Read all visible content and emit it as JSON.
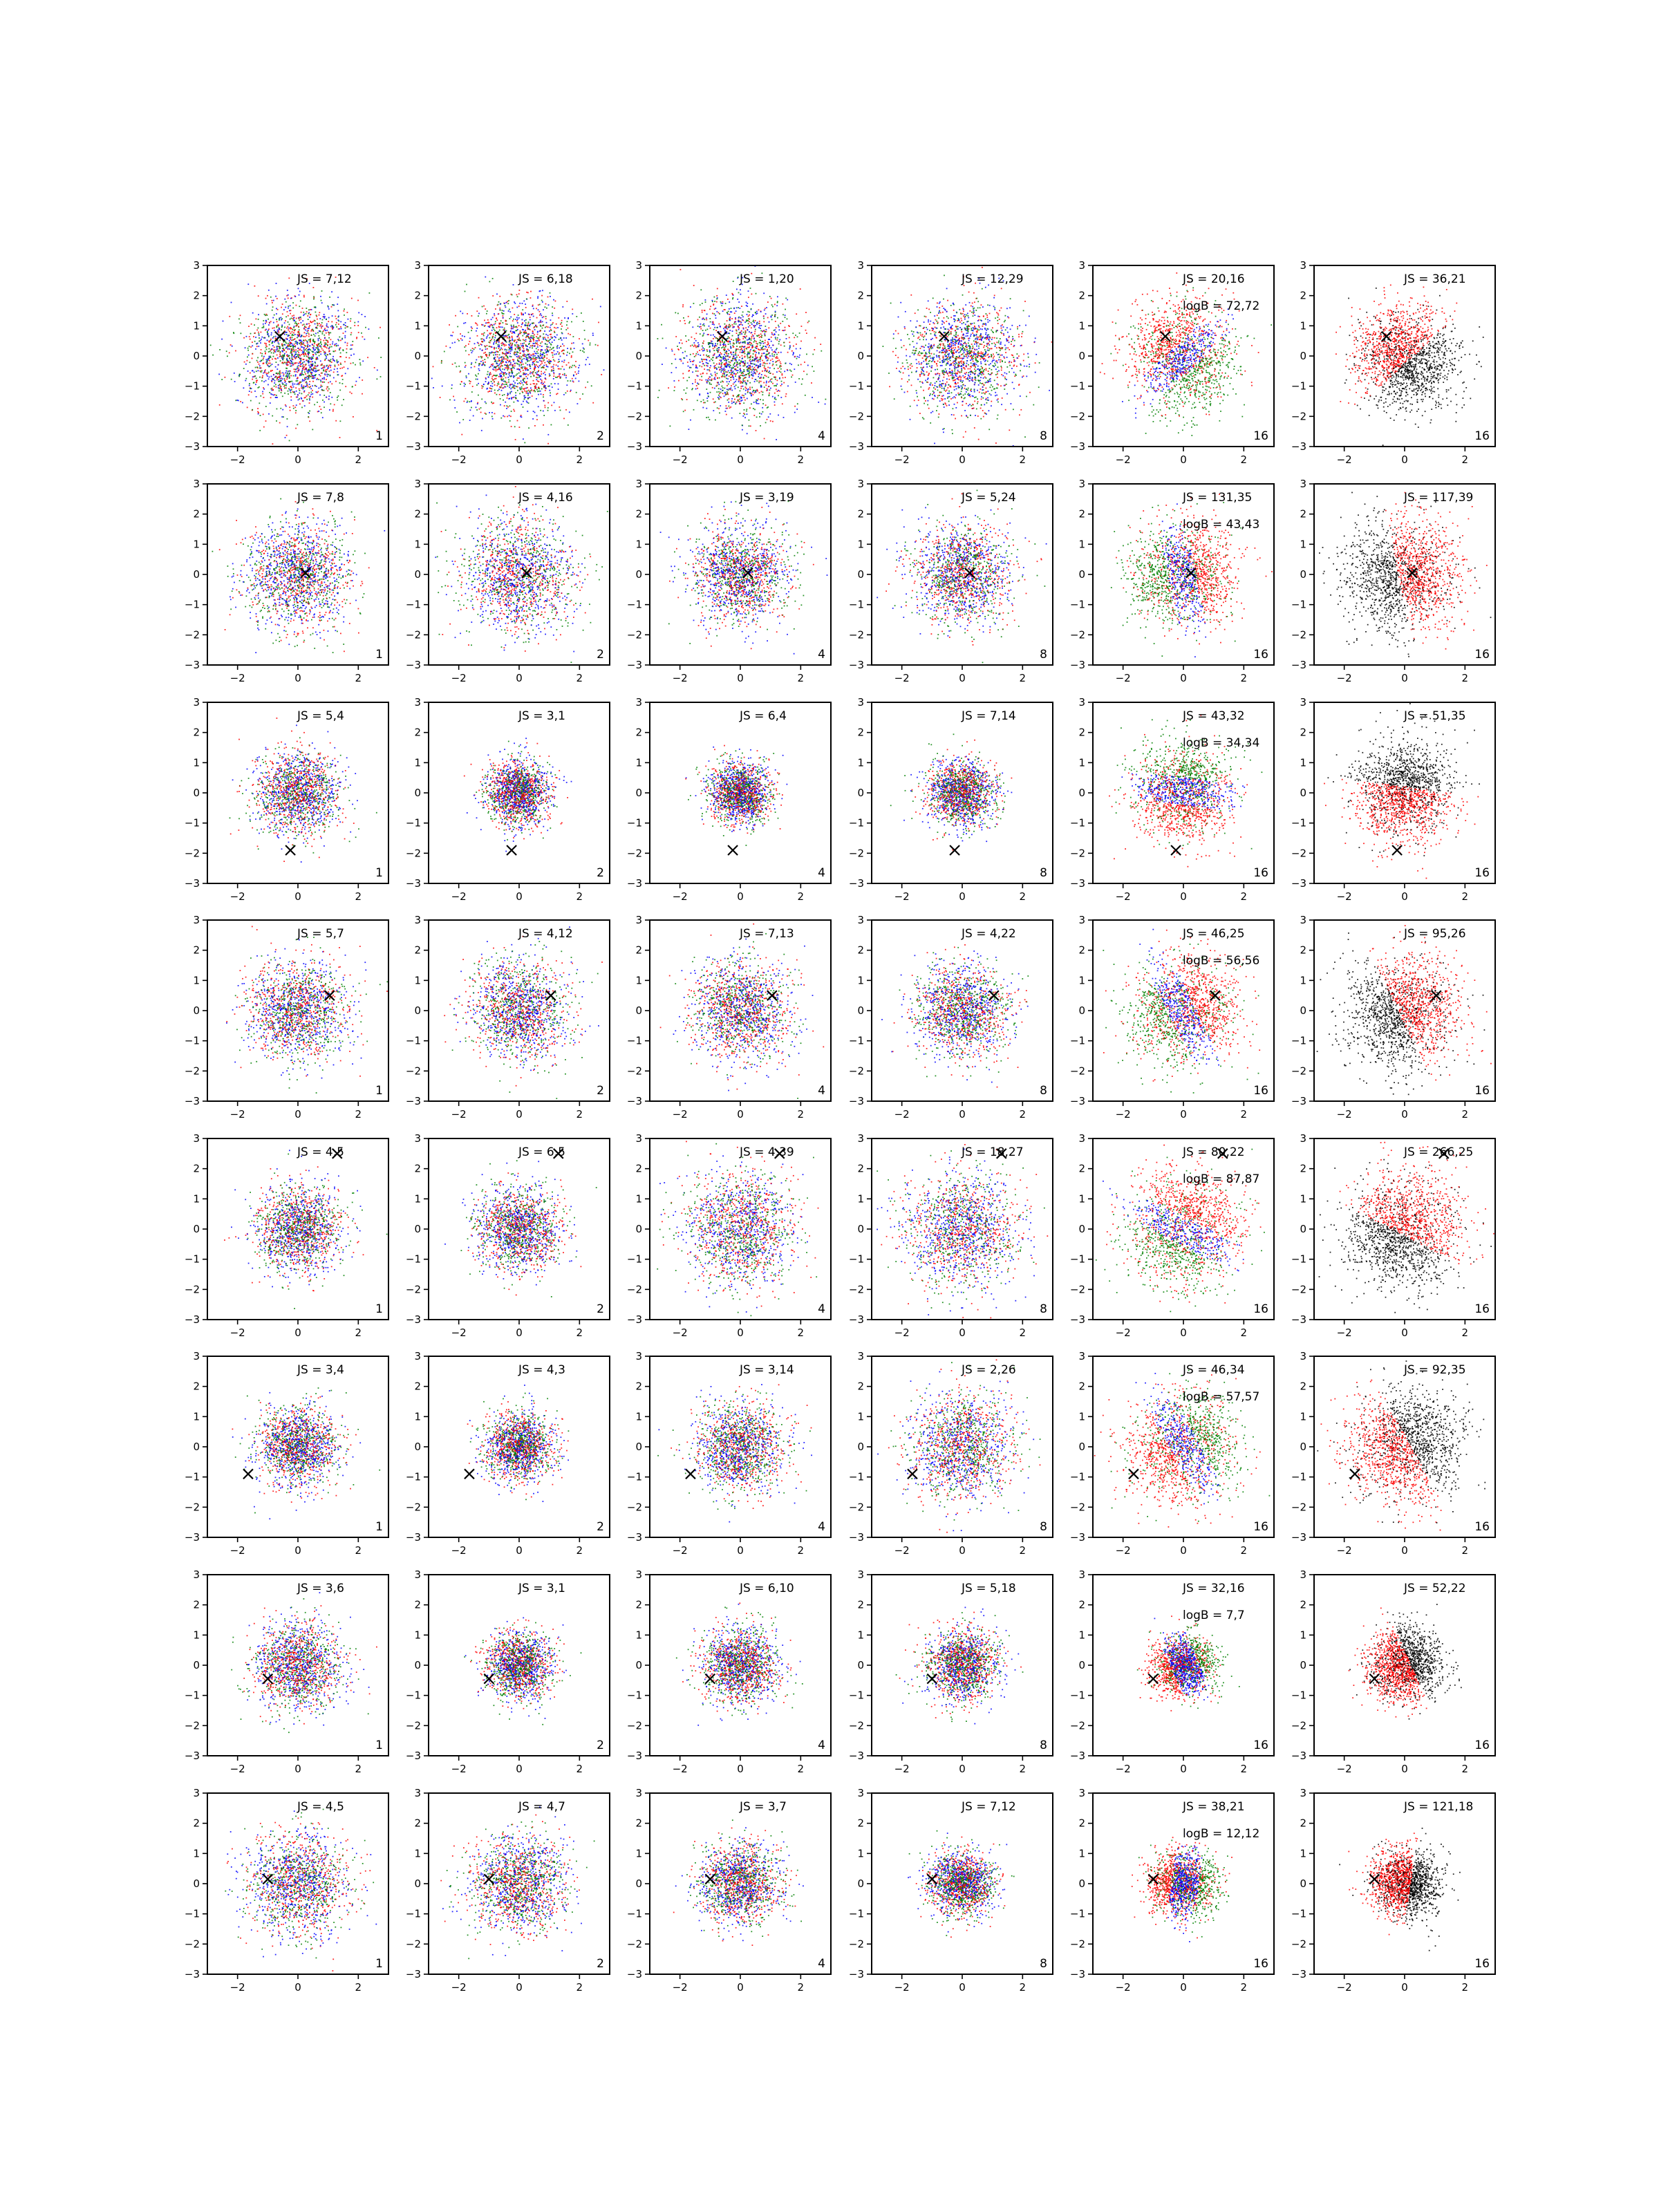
{
  "colors": {
    "series_a": "#ff0000",
    "series_b": "#0000ff",
    "series_c": "#008000",
    "series_d": "#000000",
    "marker": "#000000"
  },
  "chart_data": {
    "type": "scatter",
    "layout": "grid of 8 rows by 6 columns of scatter panels",
    "xlim": [
      -3,
      3
    ],
    "ylim": [
      -3,
      3
    ],
    "xticks": [
      -2,
      0,
      2
    ],
    "yticks": [
      -3,
      -2,
      -1,
      0,
      1,
      2,
      3
    ],
    "tick_label_format": "unicode minus for negatives",
    "grid": false,
    "marker_symbol": "x",
    "column_counts": [
      "1",
      "2",
      "4",
      "8",
      "16",
      "16"
    ],
    "rows": [
      {
        "marker": [
          -0.6,
          0.65
        ],
        "js": [
          "JS = 7,12",
          "JS = 6,18",
          "JS = 1,20",
          "JS = 12,29",
          "JS = 20,16",
          "JS = 36,21"
        ],
        "logb": "logB = 72,72",
        "spread": [
          1.45,
          1.5,
          1.55,
          1.5,
          1.4,
          1.3
        ]
      },
      {
        "marker": [
          0.25,
          0.05
        ],
        "js": [
          "JS = 7,8",
          "JS = 4,16",
          "JS = 3,19",
          "JS = 5,24",
          "JS = 131,35",
          "JS = 117,39"
        ],
        "logb": "logB = 43,43",
        "spread": [
          1.4,
          1.5,
          1.3,
          1.3,
          1.35,
          1.45
        ]
      },
      {
        "marker": [
          -0.25,
          -1.9
        ],
        "js": [
          "JS = 5,4",
          "JS = 3,1",
          "JS = 6,4",
          "JS = 7,14",
          "JS = 43,32",
          "JS = 51,35"
        ],
        "logb": "logB = 34,34",
        "spread": [
          1.1,
          0.85,
          0.8,
          0.9,
          1.25,
          1.3
        ]
      },
      {
        "marker": [
          1.05,
          0.5
        ],
        "js": [
          "JS = 5,7",
          "JS = 4,12",
          "JS = 7,13",
          "JS = 4,22",
          "JS = 46,25",
          "JS = 95,26"
        ],
        "logb": "logB = 56,56",
        "spread": [
          1.35,
          1.3,
          1.35,
          1.2,
          1.4,
          1.45
        ]
      },
      {
        "marker": [
          1.3,
          2.5
        ],
        "js": [
          "JS = 4,5",
          "JS = 6,5",
          "JS = 4,39",
          "JS = 18,27",
          "JS = 80,22",
          "JS = 266,25"
        ],
        "logb": "logB = 87,87",
        "spread": [
          1.15,
          1.1,
          1.5,
          1.5,
          1.5,
          1.5
        ]
      },
      {
        "marker": [
          -1.65,
          -0.9
        ],
        "js": [
          "JS = 3,4",
          "JS = 4,3",
          "JS = 3,14",
          "JS = 2,26",
          "JS = 46,34",
          "JS = 92,35"
        ],
        "logb": "logB = 57,57",
        "spread": [
          1.05,
          0.9,
          1.2,
          1.4,
          1.45,
          1.5
        ]
      },
      {
        "marker": [
          -1.0,
          -0.45
        ],
        "js": [
          "JS = 3,6",
          "JS = 3,1",
          "JS = 6,10",
          "JS = 5,18",
          "JS = 32,16",
          "JS = 52,22"
        ],
        "logb": "logB = 7,7",
        "spread": [
          1.15,
          0.9,
          1.0,
          0.95,
          0.8,
          0.95
        ]
      },
      {
        "marker": [
          -1.0,
          0.15
        ],
        "js": [
          "JS = 4,5",
          "JS = 4,7",
          "JS = 3,7",
          "JS = 7,12",
          "JS = 38,21",
          "JS = 121,18"
        ],
        "logb": "logB = 12,12",
        "spread": [
          1.4,
          1.25,
          1.1,
          0.85,
          0.9,
          0.9
        ]
      }
    ]
  }
}
